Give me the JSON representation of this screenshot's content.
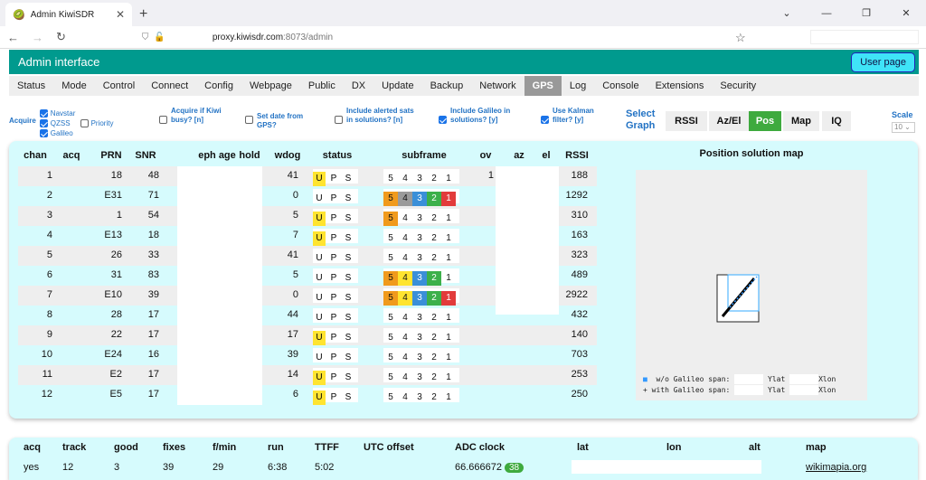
{
  "browser": {
    "tab_title": "Admin KiwiSDR",
    "url_host": "proxy.kiwisdr.com",
    "url_path": ":8073/admin"
  },
  "header": {
    "title": "Admin interface",
    "user_page": "User page"
  },
  "menu": [
    "Status",
    "Mode",
    "Control",
    "Connect",
    "Config",
    "Webpage",
    "Public",
    "DX",
    "Update",
    "Backup",
    "Network",
    "GPS",
    "Log",
    "Console",
    "Extensions",
    "Security"
  ],
  "menu_active": "GPS",
  "options": {
    "acquire": {
      "label": "Acquire",
      "navstar": "Navstar",
      "qzss": "QZSS",
      "galileo": "Galileo",
      "priority": "Priority"
    },
    "acq_busy": "Acquire if Kiwi busy? [n]",
    "set_date": "Set date from GPS?",
    "alerted": "Include alerted sats in solutions? [n]",
    "galileo_sol": "Include Galileo in solutions? [y]",
    "kalman": "Use Kalman filter? [y]",
    "select_graph": "Select Graph",
    "graph_buttons": [
      "RSSI",
      "Az/El",
      "Pos",
      "Map",
      "IQ"
    ],
    "graph_active": "Pos",
    "scale_label": "Scale",
    "scale_value": "10"
  },
  "table": {
    "headers": {
      "chan": "chan",
      "acq": "acq",
      "prn": "PRN",
      "snr": "SNR",
      "eph": "eph age",
      "hold": "hold",
      "wdog": "wdog",
      "status": "status",
      "subframe": "subframe",
      "ov": "ov",
      "az": "az",
      "el": "el",
      "rssi": "RSSI"
    },
    "rows": [
      {
        "chan": "1",
        "prn": "18",
        "snr": "48",
        "wdog": "41",
        "u": true,
        "sub": [
          "",
          "",
          "",
          "",
          ""
        ],
        "ov": "1",
        "rssi": "188"
      },
      {
        "chan": "2",
        "prn": "E31",
        "snr": "71",
        "wdog": "0",
        "u": false,
        "sub": [
          "c5",
          "c4g",
          "c3",
          "c2",
          "c1"
        ],
        "ov": "",
        "rssi": "1292"
      },
      {
        "chan": "3",
        "prn": "1",
        "snr": "54",
        "wdog": "5",
        "u": true,
        "sub": [
          "c5",
          "",
          "",
          "",
          ""
        ],
        "ov": "",
        "rssi": "310"
      },
      {
        "chan": "4",
        "prn": "E13",
        "snr": "18",
        "wdog": "7",
        "u": true,
        "sub": [
          "",
          "",
          "",
          "",
          ""
        ],
        "ov": "",
        "rssi": "163"
      },
      {
        "chan": "5",
        "prn": "26",
        "snr": "33",
        "wdog": "41",
        "u": false,
        "sub": [
          "",
          "",
          "",
          "",
          ""
        ],
        "ov": "",
        "rssi": "323"
      },
      {
        "chan": "6",
        "prn": "31",
        "snr": "83",
        "wdog": "5",
        "u": false,
        "sub": [
          "c5",
          "c4y",
          "c3",
          "c2",
          ""
        ],
        "ov": "",
        "rssi": "489"
      },
      {
        "chan": "7",
        "prn": "E10",
        "snr": "39",
        "wdog": "0",
        "u": false,
        "sub": [
          "c5",
          "c4y",
          "c3",
          "c2",
          "c1"
        ],
        "ov": "",
        "rssi": "2922"
      },
      {
        "chan": "8",
        "prn": "28",
        "snr": "17",
        "wdog": "44",
        "u": false,
        "sub": [
          "",
          "",
          "",
          "",
          ""
        ],
        "ov": "",
        "rssi": "432"
      },
      {
        "chan": "9",
        "prn": "22",
        "snr": "17",
        "wdog": "17",
        "u": true,
        "sub": [
          "",
          "",
          "",
          "",
          ""
        ],
        "ov": "",
        "rssi": "140"
      },
      {
        "chan": "10",
        "prn": "E24",
        "snr": "16",
        "wdog": "39",
        "u": false,
        "sub": [
          "",
          "",
          "",
          "",
          ""
        ],
        "ov": "",
        "rssi": "703"
      },
      {
        "chan": "11",
        "prn": "E2",
        "snr": "17",
        "wdog": "14",
        "u": true,
        "sub": [
          "",
          "",
          "",
          "",
          ""
        ],
        "ov": "",
        "rssi": "253"
      },
      {
        "chan": "12",
        "prn": "E5",
        "snr": "17",
        "wdog": "6",
        "u": true,
        "sub": [
          "",
          "",
          "",
          "",
          ""
        ],
        "ov": "",
        "rssi": "250"
      }
    ],
    "status_letters": [
      "U",
      "P",
      "S"
    ],
    "subframe_digits": [
      "5",
      "4",
      "3",
      "2",
      "1"
    ]
  },
  "map": {
    "title": "Position solution map",
    "legend_wo": "w/o Galileo span:",
    "legend_with": "with Galileo span:",
    "ylat": "Ylat",
    "xlon": "Xlon"
  },
  "stats": {
    "headers": [
      "acq",
      "track",
      "good",
      "fixes",
      "f/min",
      "run",
      "TTFF",
      "UTC offset",
      "ADC clock",
      "lat",
      "lon",
      "alt",
      "map"
    ],
    "acq": "yes",
    "track": "12",
    "good": "3",
    "fixes": "39",
    "fmin": "29",
    "run": "6:38",
    "ttff": "5:02",
    "adc": "66.666672",
    "adc_badge": "38",
    "map_link": "wikimapia.org"
  }
}
